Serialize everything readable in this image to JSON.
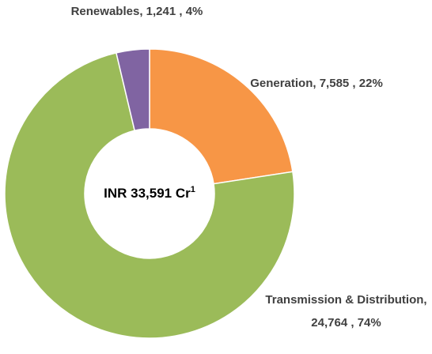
{
  "chart_data": {
    "type": "donut",
    "categories": [
      "Generation",
      "Transmission & Distribution",
      "Renewables"
    ],
    "values": [
      7585,
      24764,
      1241
    ],
    "value_labels": [
      "7,585",
      "24,764",
      "1,241"
    ],
    "percentages": [
      22,
      74,
      4
    ],
    "percentage_labels": [
      "22%",
      "74%",
      "4%"
    ],
    "colors": [
      "#F79646",
      "#9BBB59",
      "#8064A2"
    ],
    "center_label": "INR 33,591 Cr",
    "center_label_note": "1"
  }
}
